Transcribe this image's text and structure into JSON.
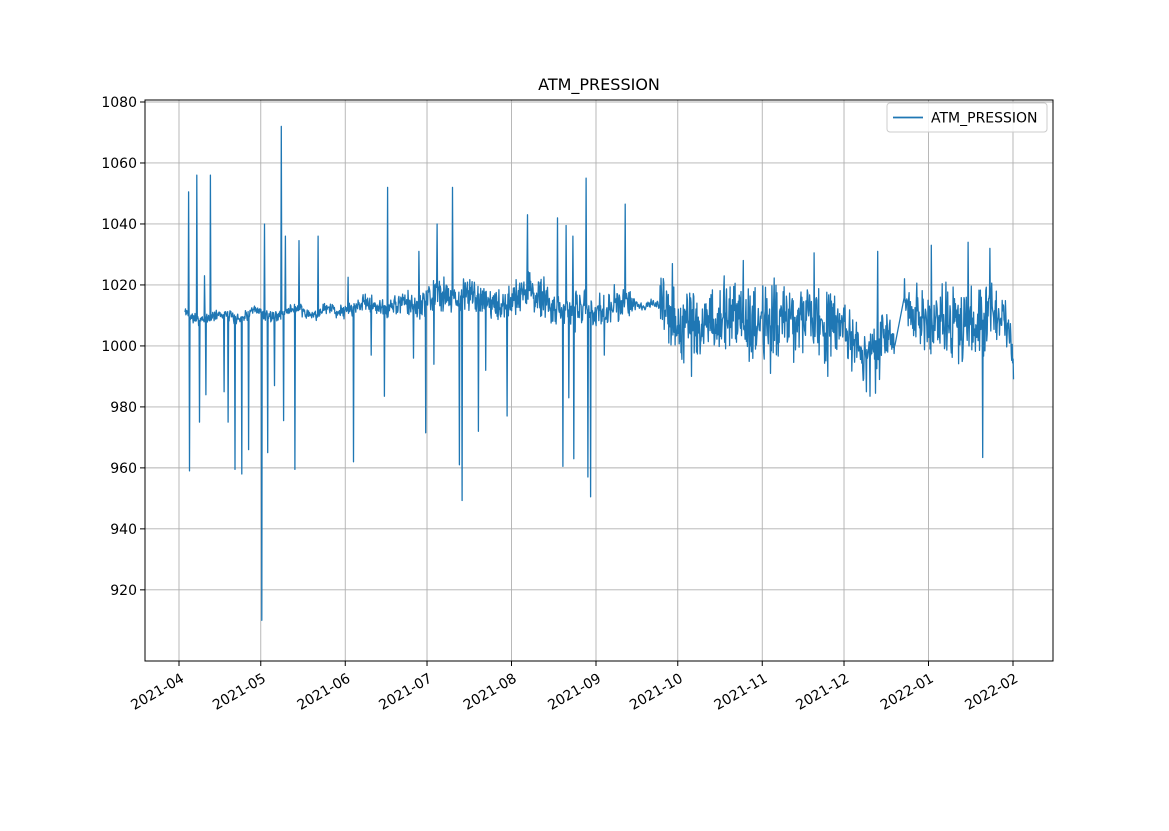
{
  "chart_data": {
    "type": "line",
    "title": "ATM_PRESSION",
    "legend": {
      "position": "upper-right",
      "entries": [
        {
          "label": "ATM_PRESSION",
          "color": "#1f77b4"
        }
      ]
    },
    "x_axis": {
      "tick_labels": [
        "2021-04",
        "2021-05",
        "2021-06",
        "2021-07",
        "2021-08",
        "2021-09",
        "2021-10",
        "2021-11",
        "2021-12",
        "2022-01",
        "2022-02"
      ],
      "tick_days": [
        0,
        30,
        61,
        91,
        122,
        153,
        183,
        214,
        244,
        275,
        306
      ],
      "rotation_deg": 30,
      "epoch": "2021-04-01"
    },
    "y_axis": {
      "ticks": [
        920,
        940,
        960,
        980,
        1000,
        1020,
        1040,
        1060,
        1080
      ],
      "ylim": [
        896.7,
        1080.7
      ]
    },
    "grid": true,
    "colors": {
      "line": "#1f77b4",
      "grid": "#b0b0b0",
      "frame": "#000000",
      "text": "#000000",
      "background": "#ffffff"
    },
    "series": [
      {
        "name": "ATM_PRESSION",
        "color": "#1f77b4",
        "x_unit": "days_since_2021-04-01",
        "x_range": [
          2.2,
          306.2
        ],
        "samples_per_day": 6,
        "baseline_nodes": [
          [
            2.2,
            1009.5
          ],
          [
            10,
            1010
          ],
          [
            20,
            1010.5
          ],
          [
            30,
            1009.5
          ],
          [
            40,
            1011
          ],
          [
            46,
            1012
          ],
          [
            52,
            1011.5
          ],
          [
            58,
            1011
          ],
          [
            64,
            1012.5
          ],
          [
            70,
            1012.5
          ],
          [
            76,
            1013.5
          ],
          [
            82,
            1013.5
          ],
          [
            88,
            1014.5
          ],
          [
            94,
            1015
          ],
          [
            100,
            1016.5
          ],
          [
            107,
            1016.5
          ],
          [
            113,
            1015.5
          ],
          [
            120,
            1013.5
          ],
          [
            124,
            1016
          ],
          [
            128,
            1019
          ],
          [
            131,
            1017
          ],
          [
            134,
            1013.5
          ],
          [
            138,
            1011.5
          ],
          [
            143,
            1012
          ],
          [
            149,
            1012.5
          ],
          [
            154,
            1012
          ],
          [
            158,
            1013.5
          ],
          [
            162,
            1012.5
          ],
          [
            167,
            1013.5
          ],
          [
            172,
            1013.5
          ],
          [
            176,
            1012.5
          ],
          [
            179,
            1010
          ],
          [
            184,
            1008
          ],
          [
            190,
            1007.5
          ],
          [
            198,
            1008.5
          ],
          [
            206,
            1009
          ],
          [
            214,
            1008
          ],
          [
            222,
            1009.5
          ],
          [
            230,
            1008
          ],
          [
            237,
            1006.5
          ],
          [
            243,
            1005.5
          ],
          [
            247,
            1002.5
          ],
          [
            251,
            999.5
          ],
          [
            254,
            998.5
          ],
          [
            258,
            1004
          ],
          [
            262.9,
            1002
          ],
          [
            266.1,
            1016
          ],
          [
            268,
            1010
          ],
          [
            272,
            1007.5
          ],
          [
            278,
            1008.5
          ],
          [
            284,
            1007
          ],
          [
            290,
            1008.5
          ],
          [
            296,
            1007.5
          ],
          [
            300,
            1009.5
          ],
          [
            303,
            1008
          ],
          [
            305,
            1002
          ],
          [
            306.2,
            991
          ]
        ],
        "noise_halfrange_nodes": [
          [
            2.2,
            2.3
          ],
          [
            50,
            2.3
          ],
          [
            58,
            2.8
          ],
          [
            66,
            3.2
          ],
          [
            74,
            3.6
          ],
          [
            82,
            4.5
          ],
          [
            90,
            5.5
          ],
          [
            97,
            6.5
          ],
          [
            108,
            6.5
          ],
          [
            116,
            5.5
          ],
          [
            122,
            6.5
          ],
          [
            126,
            9
          ],
          [
            130,
            8.5
          ],
          [
            134,
            8
          ],
          [
            142,
            8
          ],
          [
            150,
            7
          ],
          [
            156,
            7.5
          ],
          [
            162,
            6.5
          ],
          [
            166,
            5
          ],
          [
            168,
            1.8
          ],
          [
            175.8,
            1.8
          ],
          [
            176.4,
            12
          ],
          [
            182,
            14
          ],
          [
            200,
            15
          ],
          [
            240,
            15
          ],
          [
            248,
            12
          ],
          [
            256,
            11
          ],
          [
            262.9,
            9
          ],
          [
            266.1,
            9
          ],
          [
            272,
            13
          ],
          [
            286,
            15
          ],
          [
            296,
            14
          ],
          [
            302,
            12
          ],
          [
            306.2,
            6
          ]
        ],
        "gaps": [
          [
            263,
            266
          ]
        ],
        "spikes": [
          [
            3.6,
            1050.5
          ],
          [
            3.9,
            959
          ],
          [
            6.6,
            1056
          ],
          [
            7.6,
            975
          ],
          [
            9.3,
            1023
          ],
          [
            9.8,
            984
          ],
          [
            11.6,
            1056
          ],
          [
            16.6,
            985
          ],
          [
            18.1,
            975
          ],
          [
            20.6,
            959.5
          ],
          [
            23.1,
            958
          ],
          [
            25.6,
            966
          ],
          [
            30.4,
            910
          ],
          [
            31.4,
            1040
          ],
          [
            32.6,
            965
          ],
          [
            35.1,
            987
          ],
          [
            37.6,
            1072
          ],
          [
            38.3,
            975.5
          ],
          [
            39.1,
            1036
          ],
          [
            42.6,
            959.5
          ],
          [
            44.1,
            1034.5
          ],
          [
            51.1,
            1036
          ],
          [
            62.1,
            1022.5
          ],
          [
            64.1,
            962
          ],
          [
            70.6,
            997
          ],
          [
            75.3,
            983.5
          ],
          [
            76.6,
            1052
          ],
          [
            86.1,
            996
          ],
          [
            88.1,
            1031
          ],
          [
            90.6,
            971.5
          ],
          [
            93.6,
            994
          ],
          [
            94.7,
            1040
          ],
          [
            100.3,
            1052
          ],
          [
            102.8,
            961
          ],
          [
            103.9,
            949.3
          ],
          [
            109.8,
            972
          ],
          [
            112.6,
            992
          ],
          [
            120.4,
            977
          ],
          [
            127.8,
            1043
          ],
          [
            138.8,
            1042
          ],
          [
            140.9,
            960.5
          ],
          [
            142.1,
            1039.5
          ],
          [
            143.1,
            983
          ],
          [
            144.6,
            1036
          ],
          [
            144.9,
            963
          ],
          [
            149.4,
            1055
          ],
          [
            150.0,
            957
          ],
          [
            151.0,
            950.5
          ],
          [
            156.1,
            997
          ],
          [
            163.7,
            1046.5
          ],
          [
            181,
            1027
          ],
          [
            188,
            990
          ],
          [
            207,
            1028
          ],
          [
            217,
            991
          ],
          [
            233,
            1030.5
          ],
          [
            238,
            990
          ],
          [
            252.2,
            985
          ],
          [
            253.6,
            983.5
          ],
          [
            255.6,
            984.5
          ],
          [
            257.1,
            989
          ],
          [
            256.3,
            1031
          ],
          [
            262.8,
            1001
          ],
          [
            266.2,
            1022
          ],
          [
            276,
            1033
          ],
          [
            289.5,
            1034
          ],
          [
            294.9,
            963.4
          ],
          [
            297.5,
            1032
          ]
        ]
      }
    ],
    "render_seed": 42
  }
}
